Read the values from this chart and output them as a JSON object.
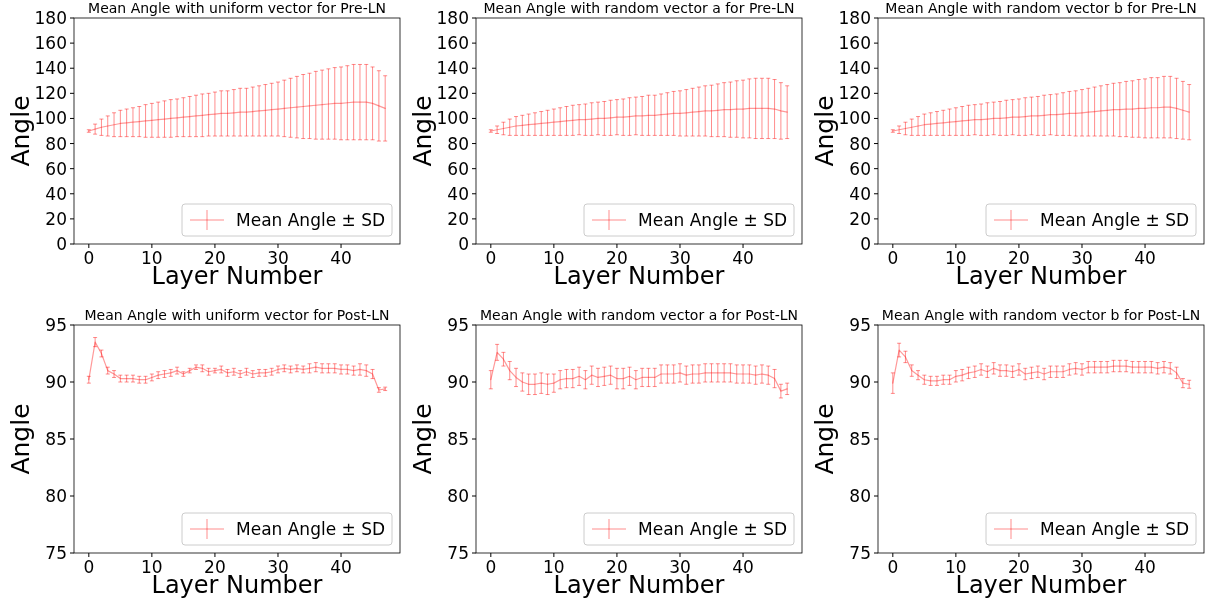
{
  "chart_data": [
    {
      "type": "line",
      "title": "Mean Angle with uniform vector for Pre-LN",
      "xlabel": "Layer Number",
      "ylabel": "Angle",
      "legend": "bottom right",
      "line_style": "solid",
      "xlim": [
        -2.35,
        49.35
      ],
      "xticks": [
        0,
        10,
        20,
        30,
        40
      ],
      "ylim": [
        0,
        180
      ],
      "yticks": [
        0,
        20,
        40,
        60,
        80,
        100,
        120,
        140,
        160,
        180
      ],
      "x": [
        0,
        1,
        2,
        3,
        4,
        5,
        6,
        7,
        8,
        9,
        10,
        11,
        12,
        13,
        14,
        15,
        16,
        17,
        18,
        19,
        20,
        21,
        22,
        23,
        24,
        25,
        26,
        27,
        28,
        29,
        30,
        31,
        32,
        33,
        34,
        35,
        36,
        37,
        38,
        39,
        40,
        41,
        42,
        43,
        44,
        45,
        46,
        47
      ],
      "series": [
        {
          "name": "Mean Angle ± SD",
          "color": "#ff0000",
          "values": [
            90,
            91.5,
            93,
            94,
            95,
            96,
            96.5,
            97,
            97.5,
            98,
            98.5,
            99,
            99.5,
            100,
            100.5,
            101,
            101.5,
            102,
            102.5,
            103,
            103.5,
            104,
            104,
            104.5,
            105,
            105,
            105.5,
            106,
            106.5,
            107,
            107.5,
            108,
            108.5,
            109,
            109.5,
            110,
            110.5,
            111,
            111.5,
            112,
            112,
            112.5,
            113,
            113,
            113,
            112,
            110,
            108
          ],
          "errors": [
            1,
            4,
            6.5,
            8,
            9.5,
            10.5,
            11,
            11.5,
            12,
            13,
            13.5,
            14,
            14.5,
            15,
            15,
            15.5,
            16,
            16.5,
            17,
            17,
            17.5,
            18,
            18,
            18.5,
            19,
            19,
            19.5,
            20,
            20.5,
            21,
            21.5,
            22.5,
            23.5,
            24.5,
            25.5,
            26,
            27,
            27.5,
            28,
            28.5,
            29,
            29.5,
            30,
            30,
            30,
            29,
            28,
            26
          ]
        }
      ]
    },
    {
      "type": "line",
      "title": "Mean Angle with random vector a for Pre-LN",
      "xlabel": "Layer Number",
      "ylabel": "Angle",
      "legend": "bottom right",
      "line_style": "solid",
      "xlim": [
        -2.35,
        49.35
      ],
      "xticks": [
        0,
        10,
        20,
        30,
        40
      ],
      "ylim": [
        0,
        180
      ],
      "yticks": [
        0,
        20,
        40,
        60,
        80,
        100,
        120,
        140,
        160,
        180
      ],
      "x": [
        0,
        1,
        2,
        3,
        4,
        5,
        6,
        7,
        8,
        9,
        10,
        11,
        12,
        13,
        14,
        15,
        16,
        17,
        18,
        19,
        20,
        21,
        22,
        23,
        24,
        25,
        26,
        27,
        28,
        29,
        30,
        31,
        32,
        33,
        34,
        35,
        36,
        37,
        38,
        39,
        40,
        41,
        42,
        43,
        44,
        45,
        46,
        47
      ],
      "series": [
        {
          "name": "Mean Angle ± SD",
          "color": "#ff0000",
          "values": [
            90,
            91,
            92,
            93,
            94,
            94.5,
            95,
            95.5,
            96,
            96.5,
            97,
            97.5,
            98,
            98.5,
            99,
            99,
            99.5,
            100,
            100,
            100.5,
            101,
            101,
            101.5,
            102,
            102,
            102.5,
            102.5,
            103,
            103.5,
            104,
            104,
            104.5,
            105,
            105.5,
            106,
            106,
            106.5,
            107,
            107,
            107.5,
            107.5,
            108,
            108,
            108,
            108,
            107.5,
            106,
            105
          ],
          "errors": [
            1,
            3,
            5,
            6.5,
            7.5,
            8,
            8.5,
            9,
            9.5,
            10,
            10.5,
            11,
            11.5,
            12,
            12,
            12.5,
            13,
            13,
            13.5,
            14,
            14,
            14.5,
            15,
            15,
            15.5,
            16,
            16,
            16.5,
            17,
            17.5,
            18,
            18.5,
            19,
            19.5,
            20,
            20.5,
            21,
            21.5,
            22,
            22.5,
            23,
            23.5,
            24,
            24,
            24,
            23.5,
            22.5,
            21
          ]
        }
      ]
    },
    {
      "type": "line",
      "title": "Mean Angle with random vector b for Pre-LN",
      "xlabel": "Layer Number",
      "ylabel": "Angle",
      "legend": "bottom right",
      "line_style": "solid",
      "xlim": [
        -2.35,
        49.35
      ],
      "xticks": [
        0,
        10,
        20,
        30,
        40
      ],
      "ylim": [
        0,
        180
      ],
      "yticks": [
        0,
        20,
        40,
        60,
        80,
        100,
        120,
        140,
        160,
        180
      ],
      "x": [
        0,
        1,
        2,
        3,
        4,
        5,
        6,
        7,
        8,
        9,
        10,
        11,
        12,
        13,
        14,
        15,
        16,
        17,
        18,
        19,
        20,
        21,
        22,
        23,
        24,
        25,
        26,
        27,
        28,
        29,
        30,
        31,
        32,
        33,
        34,
        35,
        36,
        37,
        38,
        39,
        40,
        41,
        42,
        43,
        44,
        45,
        46,
        47
      ],
      "series": [
        {
          "name": "Mean Angle ± SD",
          "color": "#ff0000",
          "values": [
            90,
            91,
            92,
            93,
            94,
            95,
            95.5,
            96,
            96.5,
            97,
            97.5,
            98,
            98.5,
            99,
            99,
            99.5,
            100,
            100,
            100.5,
            101,
            101,
            101.5,
            102,
            102,
            102.5,
            103,
            103,
            103.5,
            104,
            104,
            104.5,
            105,
            105.5,
            106,
            106.5,
            107,
            107,
            107.5,
            107.5,
            108,
            108,
            108.5,
            108.5,
            109,
            109,
            108,
            106.5,
            105
          ],
          "errors": [
            1,
            3,
            5,
            6.5,
            7.5,
            8.5,
            9,
            9.5,
            10,
            10.5,
            11,
            11.5,
            12,
            12,
            12.5,
            13,
            13,
            13.5,
            14,
            14,
            14.5,
            15,
            15,
            15.5,
            16,
            16,
            16.5,
            17,
            17.5,
            18,
            18.5,
            19,
            19.5,
            20,
            20.5,
            21,
            21.5,
            22,
            22.5,
            23,
            23.5,
            24,
            24,
            24.5,
            24.5,
            24,
            23,
            22
          ]
        }
      ]
    },
    {
      "type": "line",
      "title": "Mean Angle with uniform vector for Post-LN",
      "xlabel": "Layer Number",
      "ylabel": "Angle",
      "legend": "bottom right",
      "line_style": "solid",
      "xlim": [
        -2.35,
        49.35
      ],
      "xticks": [
        0,
        10,
        20,
        30,
        40
      ],
      "ylim": [
        75,
        95
      ],
      "yticks": [
        75,
        80,
        85,
        90,
        95
      ],
      "x": [
        0,
        1,
        2,
        3,
        4,
        5,
        6,
        7,
        8,
        9,
        10,
        11,
        12,
        13,
        14,
        15,
        16,
        17,
        18,
        19,
        20,
        21,
        22,
        23,
        24,
        25,
        26,
        27,
        28,
        29,
        30,
        31,
        32,
        33,
        34,
        35,
        36,
        37,
        38,
        39,
        40,
        41,
        42,
        43,
        44,
        45,
        46,
        47
      ],
      "series": [
        {
          "name": "Mean Angle ± SD",
          "color": "#ff0000",
          "values": [
            90.2,
            93.5,
            92.5,
            91,
            90.7,
            90.3,
            90.3,
            90.3,
            90.2,
            90.2,
            90.4,
            90.6,
            90.7,
            90.8,
            91,
            90.7,
            91,
            91.3,
            91.2,
            90.9,
            91,
            91.1,
            90.8,
            90.9,
            90.7,
            90.9,
            90.7,
            90.8,
            90.8,
            90.9,
            91.1,
            91.2,
            91.1,
            91.2,
            91.1,
            91.2,
            91.3,
            91.2,
            91.2,
            91.2,
            91.1,
            91.1,
            91,
            91.1,
            91,
            90.7,
            89.3,
            89.4
          ],
          "errors": [
            0.3,
            0.4,
            0.3,
            0.3,
            0.3,
            0.3,
            0.3,
            0.3,
            0.3,
            0.3,
            0.3,
            0.3,
            0.3,
            0.3,
            0.3,
            0.2,
            0.2,
            0.2,
            0.3,
            0.3,
            0.2,
            0.3,
            0.3,
            0.3,
            0.3,
            0.3,
            0.3,
            0.3,
            0.3,
            0.3,
            0.3,
            0.3,
            0.3,
            0.3,
            0.3,
            0.4,
            0.4,
            0.4,
            0.4,
            0.4,
            0.4,
            0.4,
            0.4,
            0.5,
            0.5,
            0.4,
            0.2,
            0.15
          ]
        }
      ]
    },
    {
      "type": "line",
      "title": "Mean Angle with random vector a for Post-LN",
      "xlabel": "Layer Number",
      "ylabel": "Angle",
      "legend": "bottom right",
      "line_style": "solid",
      "xlim": [
        -2.35,
        49.35
      ],
      "xticks": [
        0,
        10,
        20,
        30,
        40
      ],
      "ylim": [
        75,
        95
      ],
      "yticks": [
        75,
        80,
        85,
        90,
        95
      ],
      "x": [
        0,
        1,
        2,
        3,
        4,
        5,
        6,
        7,
        8,
        9,
        10,
        11,
        12,
        13,
        14,
        15,
        16,
        17,
        18,
        19,
        20,
        21,
        22,
        23,
        24,
        25,
        26,
        27,
        28,
        29,
        30,
        31,
        32,
        33,
        34,
        35,
        36,
        37,
        38,
        39,
        40,
        41,
        42,
        43,
        44,
        45,
        46,
        47
      ],
      "series": [
        {
          "name": "Mean Angle ± SD",
          "color": "#ff0000",
          "values": [
            90.2,
            92.6,
            92,
            91,
            90.4,
            90,
            89.8,
            89.8,
            89.9,
            89.8,
            89.9,
            90.2,
            90.3,
            90.3,
            90.5,
            90.2,
            90.6,
            90.4,
            90.5,
            90.6,
            90.3,
            90.3,
            90.5,
            90.2,
            90.4,
            90.4,
            90.4,
            90.7,
            90.7,
            90.7,
            90.8,
            90.6,
            90.7,
            90.7,
            90.8,
            90.8,
            90.8,
            90.8,
            90.8,
            90.7,
            90.7,
            90.7,
            90.6,
            90.7,
            90.6,
            90.3,
            89.2,
            89.4
          ],
          "errors": [
            0.8,
            0.7,
            0.6,
            0.8,
            0.8,
            0.8,
            0.9,
            0.9,
            0.9,
            0.9,
            0.8,
            0.8,
            0.8,
            0.8,
            0.8,
            0.8,
            0.8,
            0.8,
            0.8,
            0.8,
            0.9,
            0.9,
            0.8,
            0.8,
            0.8,
            0.8,
            0.8,
            0.8,
            0.8,
            0.8,
            0.8,
            0.8,
            0.8,
            0.8,
            0.8,
            0.8,
            0.8,
            0.8,
            0.8,
            0.8,
            0.8,
            0.8,
            0.8,
            0.8,
            0.8,
            0.8,
            0.6,
            0.5
          ]
        }
      ]
    },
    {
      "type": "line",
      "title": "Mean Angle with random vector b for Post-LN",
      "xlabel": "Layer Number",
      "ylabel": "Angle",
      "legend": "bottom right",
      "line_style": "solid",
      "xlim": [
        -2.35,
        49.35
      ],
      "xticks": [
        0,
        10,
        20,
        30,
        40
      ],
      "ylim": [
        75,
        95
      ],
      "yticks": [
        75,
        80,
        85,
        90,
        95
      ],
      "x": [
        0,
        1,
        2,
        3,
        4,
        5,
        6,
        7,
        8,
        9,
        10,
        11,
        12,
        13,
        14,
        15,
        16,
        17,
        18,
        19,
        20,
        21,
        22,
        23,
        24,
        25,
        26,
        27,
        28,
        29,
        30,
        31,
        32,
        33,
        34,
        35,
        36,
        37,
        38,
        39,
        40,
        41,
        42,
        43,
        44,
        45,
        46,
        47
      ],
      "series": [
        {
          "name": "Mean Angle ± SD",
          "color": "#ff0000",
          "values": [
            89.9,
            92.8,
            92.2,
            91,
            90.6,
            90.2,
            90.1,
            90.1,
            90.2,
            90.2,
            90.5,
            90.6,
            90.8,
            90.9,
            91.1,
            90.9,
            91.2,
            91,
            91,
            90.9,
            91.1,
            90.7,
            90.8,
            90.9,
            90.7,
            90.9,
            90.9,
            90.9,
            91.1,
            91.2,
            91.1,
            91.3,
            91.3,
            91.3,
            91.3,
            91.4,
            91.4,
            91.4,
            91.3,
            91.3,
            91.3,
            91.3,
            91.2,
            91.3,
            91.2,
            90.8,
            89.9,
            89.8
          ],
          "errors": [
            0.9,
            0.6,
            0.5,
            0.5,
            0.4,
            0.4,
            0.4,
            0.4,
            0.4,
            0.4,
            0.5,
            0.5,
            0.5,
            0.5,
            0.5,
            0.5,
            0.5,
            0.5,
            0.5,
            0.5,
            0.5,
            0.5,
            0.5,
            0.5,
            0.5,
            0.5,
            0.5,
            0.5,
            0.5,
            0.5,
            0.5,
            0.5,
            0.5,
            0.5,
            0.5,
            0.5,
            0.5,
            0.5,
            0.5,
            0.5,
            0.5,
            0.5,
            0.5,
            0.5,
            0.5,
            0.5,
            0.4,
            0.35
          ]
        }
      ]
    }
  ]
}
